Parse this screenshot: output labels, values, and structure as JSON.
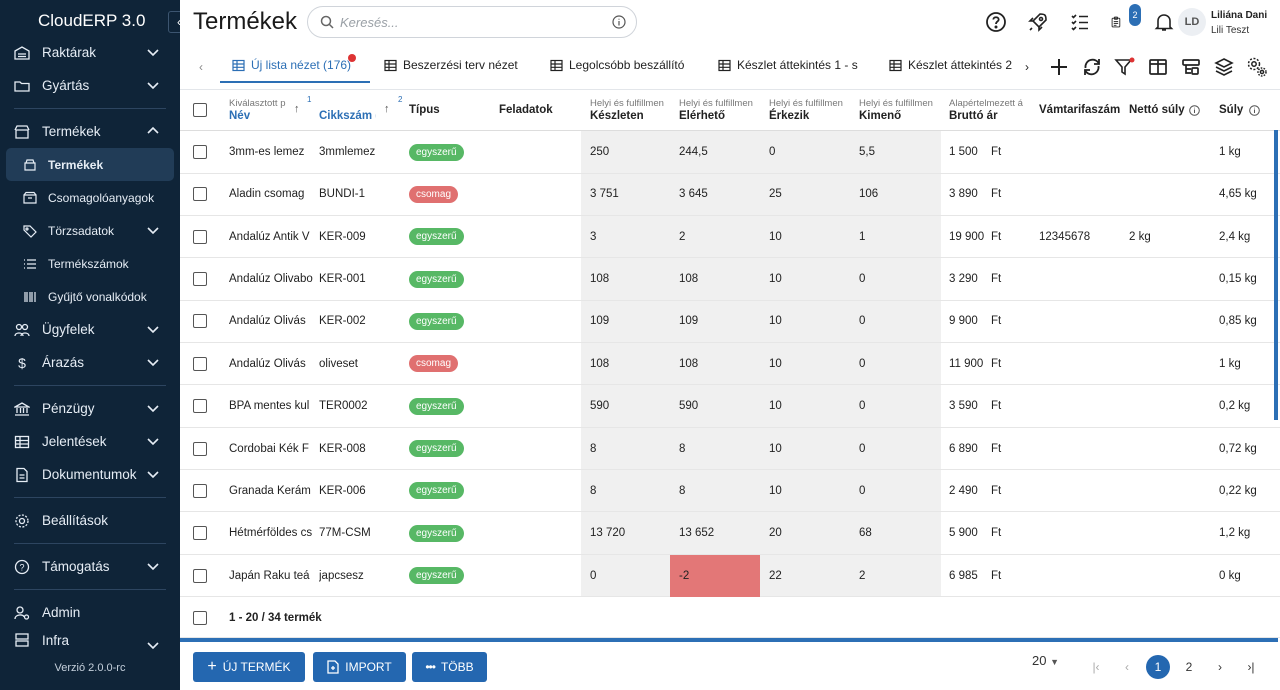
{
  "app": {
    "brand": "CloudERP 3.0",
    "version": "Verzió 2.0.0-rc"
  },
  "sidebar": {
    "items": [
      {
        "label": "Raktárak",
        "icon": "warehouse-icon"
      },
      {
        "label": "Gyártás",
        "icon": "folder-icon"
      },
      {
        "label": "Termékek",
        "icon": "shop-icon"
      },
      {
        "label": "Termékek",
        "icon": "products-icon"
      },
      {
        "label": "Csomagolóanyagok",
        "icon": "package-icon"
      },
      {
        "label": "Törzsadatok",
        "icon": "tag-icon"
      },
      {
        "label": "Termékszámok",
        "icon": "list-icon"
      },
      {
        "label": "Gyűjtő vonalkódok",
        "icon": "barcode-icon"
      },
      {
        "label": "Ügyfelek",
        "icon": "users-icon"
      },
      {
        "label": "Árazás",
        "icon": "dollar-icon"
      },
      {
        "label": "Pénzügy",
        "icon": "bank-icon"
      },
      {
        "label": "Jelentések",
        "icon": "table-icon"
      },
      {
        "label": "Dokumentumok",
        "icon": "document-icon"
      },
      {
        "label": "Beállítások",
        "icon": "settings-icon"
      },
      {
        "label": "Támogatás",
        "icon": "help-icon"
      },
      {
        "label": "Admin",
        "icon": "admin-icon"
      },
      {
        "label": "Infra",
        "icon": "infra-icon"
      }
    ]
  },
  "header": {
    "title": "Termékek",
    "search_placeholder": "Keresés...",
    "notification_count": "2",
    "user": {
      "initials": "LD",
      "name": "Liliána Dani",
      "org": "Lili Teszt"
    }
  },
  "tabs": [
    {
      "label": "Új lista nézet (176)"
    },
    {
      "label": "Beszerzési terv nézet"
    },
    {
      "label": "Legolcsóbb beszállító"
    },
    {
      "label": "Készlet áttekintés 1 - s"
    },
    {
      "label": "Készlet áttekintés 2"
    }
  ],
  "table": {
    "headers": {
      "nev_sub": "Kiválasztott p",
      "nev": "Név",
      "nev_sortnum": "1",
      "cikk": "Cikkszám (",
      "cikk_sortnum": "2",
      "tipus": "Típus",
      "feladatok": "Feladatok",
      "keszleten_sub": "Helyi és fulfillmen",
      "keszleten": "Készleten",
      "elerheto_sub": "Helyi és fulfillmen",
      "elerheto": "Elérhető",
      "erkezik_sub": "Helyi és fulfillmen",
      "erkezik": "Érkezik",
      "kimeno_sub": "Helyi és fulfillmen",
      "kimeno": "Kimenő",
      "brutto_sub": "Alapértelmezett á",
      "brutto": "Bruttó ár",
      "vamtarifa": "Vámtarifaszám",
      "netto": "Nettó súly",
      "suly": "Súly"
    },
    "rows": [
      {
        "nev": "3mm-es lemez",
        "cikk": "3mmlemez",
        "tipus": "egyszerű",
        "tipus_color": "green",
        "keszleten": "250",
        "elerheto": "244,5",
        "erkezik": "0",
        "kimeno": "5,5",
        "brutto": "1 500",
        "currency": "Ft",
        "vamtarifa": "",
        "netto": "",
        "suly": "1 kg"
      },
      {
        "nev": "Aladin csomag",
        "cikk": "BUNDI-1",
        "tipus": "csomag",
        "tipus_color": "red",
        "keszleten": "3 751",
        "elerheto": "3 645",
        "erkezik": "25",
        "kimeno": "106",
        "brutto": "3 890",
        "currency": "Ft",
        "vamtarifa": "",
        "netto": "",
        "suly": "4,65 kg"
      },
      {
        "nev": "Andalúz Antik V",
        "cikk": "KER-009",
        "tipus": "egyszerű",
        "tipus_color": "green",
        "keszleten": "3",
        "elerheto": "2",
        "erkezik": "10",
        "kimeno": "1",
        "brutto": "19 900",
        "currency": "Ft",
        "vamtarifa": "12345678",
        "netto": "2 kg",
        "suly": "2,4 kg"
      },
      {
        "nev": "Andalúz Olivabo",
        "cikk": "KER-001",
        "tipus": "egyszerű",
        "tipus_color": "green",
        "keszleten": "108",
        "elerheto": "108",
        "erkezik": "10",
        "kimeno": "0",
        "brutto": "3 290",
        "currency": "Ft",
        "vamtarifa": "",
        "netto": "",
        "suly": "0,15 kg"
      },
      {
        "nev": "Andalúz Olivás",
        "cikk": "KER-002",
        "tipus": "egyszerű",
        "tipus_color": "green",
        "keszleten": "109",
        "elerheto": "109",
        "erkezik": "10",
        "kimeno": "0",
        "brutto": "9 900",
        "currency": "Ft",
        "vamtarifa": "",
        "netto": "",
        "suly": "0,85 kg"
      },
      {
        "nev": "Andalúz Olivás",
        "cikk": "oliveset",
        "tipus": "csomag",
        "tipus_color": "red",
        "keszleten": "108",
        "elerheto": "108",
        "erkezik": "10",
        "kimeno": "0",
        "brutto": "11 900",
        "currency": "Ft",
        "vamtarifa": "",
        "netto": "",
        "suly": "1 kg"
      },
      {
        "nev": "BPA mentes kul",
        "cikk": "TER0002",
        "tipus": "egyszerű",
        "tipus_color": "green",
        "keszleten": "590",
        "elerheto": "590",
        "erkezik": "10",
        "kimeno": "0",
        "brutto": "3 590",
        "currency": "Ft",
        "vamtarifa": "",
        "netto": "",
        "suly": "0,2 kg"
      },
      {
        "nev": "Cordobai Kék F",
        "cikk": "KER-008",
        "tipus": "egyszerű",
        "tipus_color": "green",
        "keszleten": "8",
        "elerheto": "8",
        "erkezik": "10",
        "kimeno": "0",
        "brutto": "6 890",
        "currency": "Ft",
        "vamtarifa": "",
        "netto": "",
        "suly": "0,72 kg"
      },
      {
        "nev": "Granada Kerám",
        "cikk": "KER-006",
        "tipus": "egyszerű",
        "tipus_color": "green",
        "keszleten": "8",
        "elerheto": "8",
        "erkezik": "10",
        "kimeno": "0",
        "brutto": "2 490",
        "currency": "Ft",
        "vamtarifa": "",
        "netto": "",
        "suly": "0,22 kg"
      },
      {
        "nev": "Hétmérföldes cs",
        "cikk": "77M-CSM",
        "tipus": "egyszerű",
        "tipus_color": "green",
        "keszleten": "13 720",
        "elerheto": "13 652",
        "erkezik": "20",
        "kimeno": "68",
        "brutto": "5 900",
        "currency": "Ft",
        "vamtarifa": "",
        "netto": "",
        "suly": "1,2 kg"
      },
      {
        "nev": "Japán Raku teá",
        "cikk": "japcsesz",
        "tipus": "egyszerű",
        "tipus_color": "green",
        "keszleten": "0",
        "elerheto": "-2",
        "erkezik": "22",
        "kimeno": "2",
        "brutto": "6 985",
        "currency": "Ft",
        "vamtarifa": "",
        "netto": "",
        "suly": "0 kg"
      }
    ],
    "summary": "1 - 20 / 34 termék"
  },
  "bottom": {
    "new_product": "ÚJ TERMÉK",
    "import": "IMPORT",
    "more": "TÖBB",
    "page_size": "20",
    "pages": [
      "1",
      "2"
    ],
    "current_page": "1"
  },
  "colors": {
    "sidebar": "#0f2438",
    "accent": "#2467b0",
    "chip_green": "#57b865",
    "chip_red": "#e07070",
    "negative": "#e37777"
  }
}
